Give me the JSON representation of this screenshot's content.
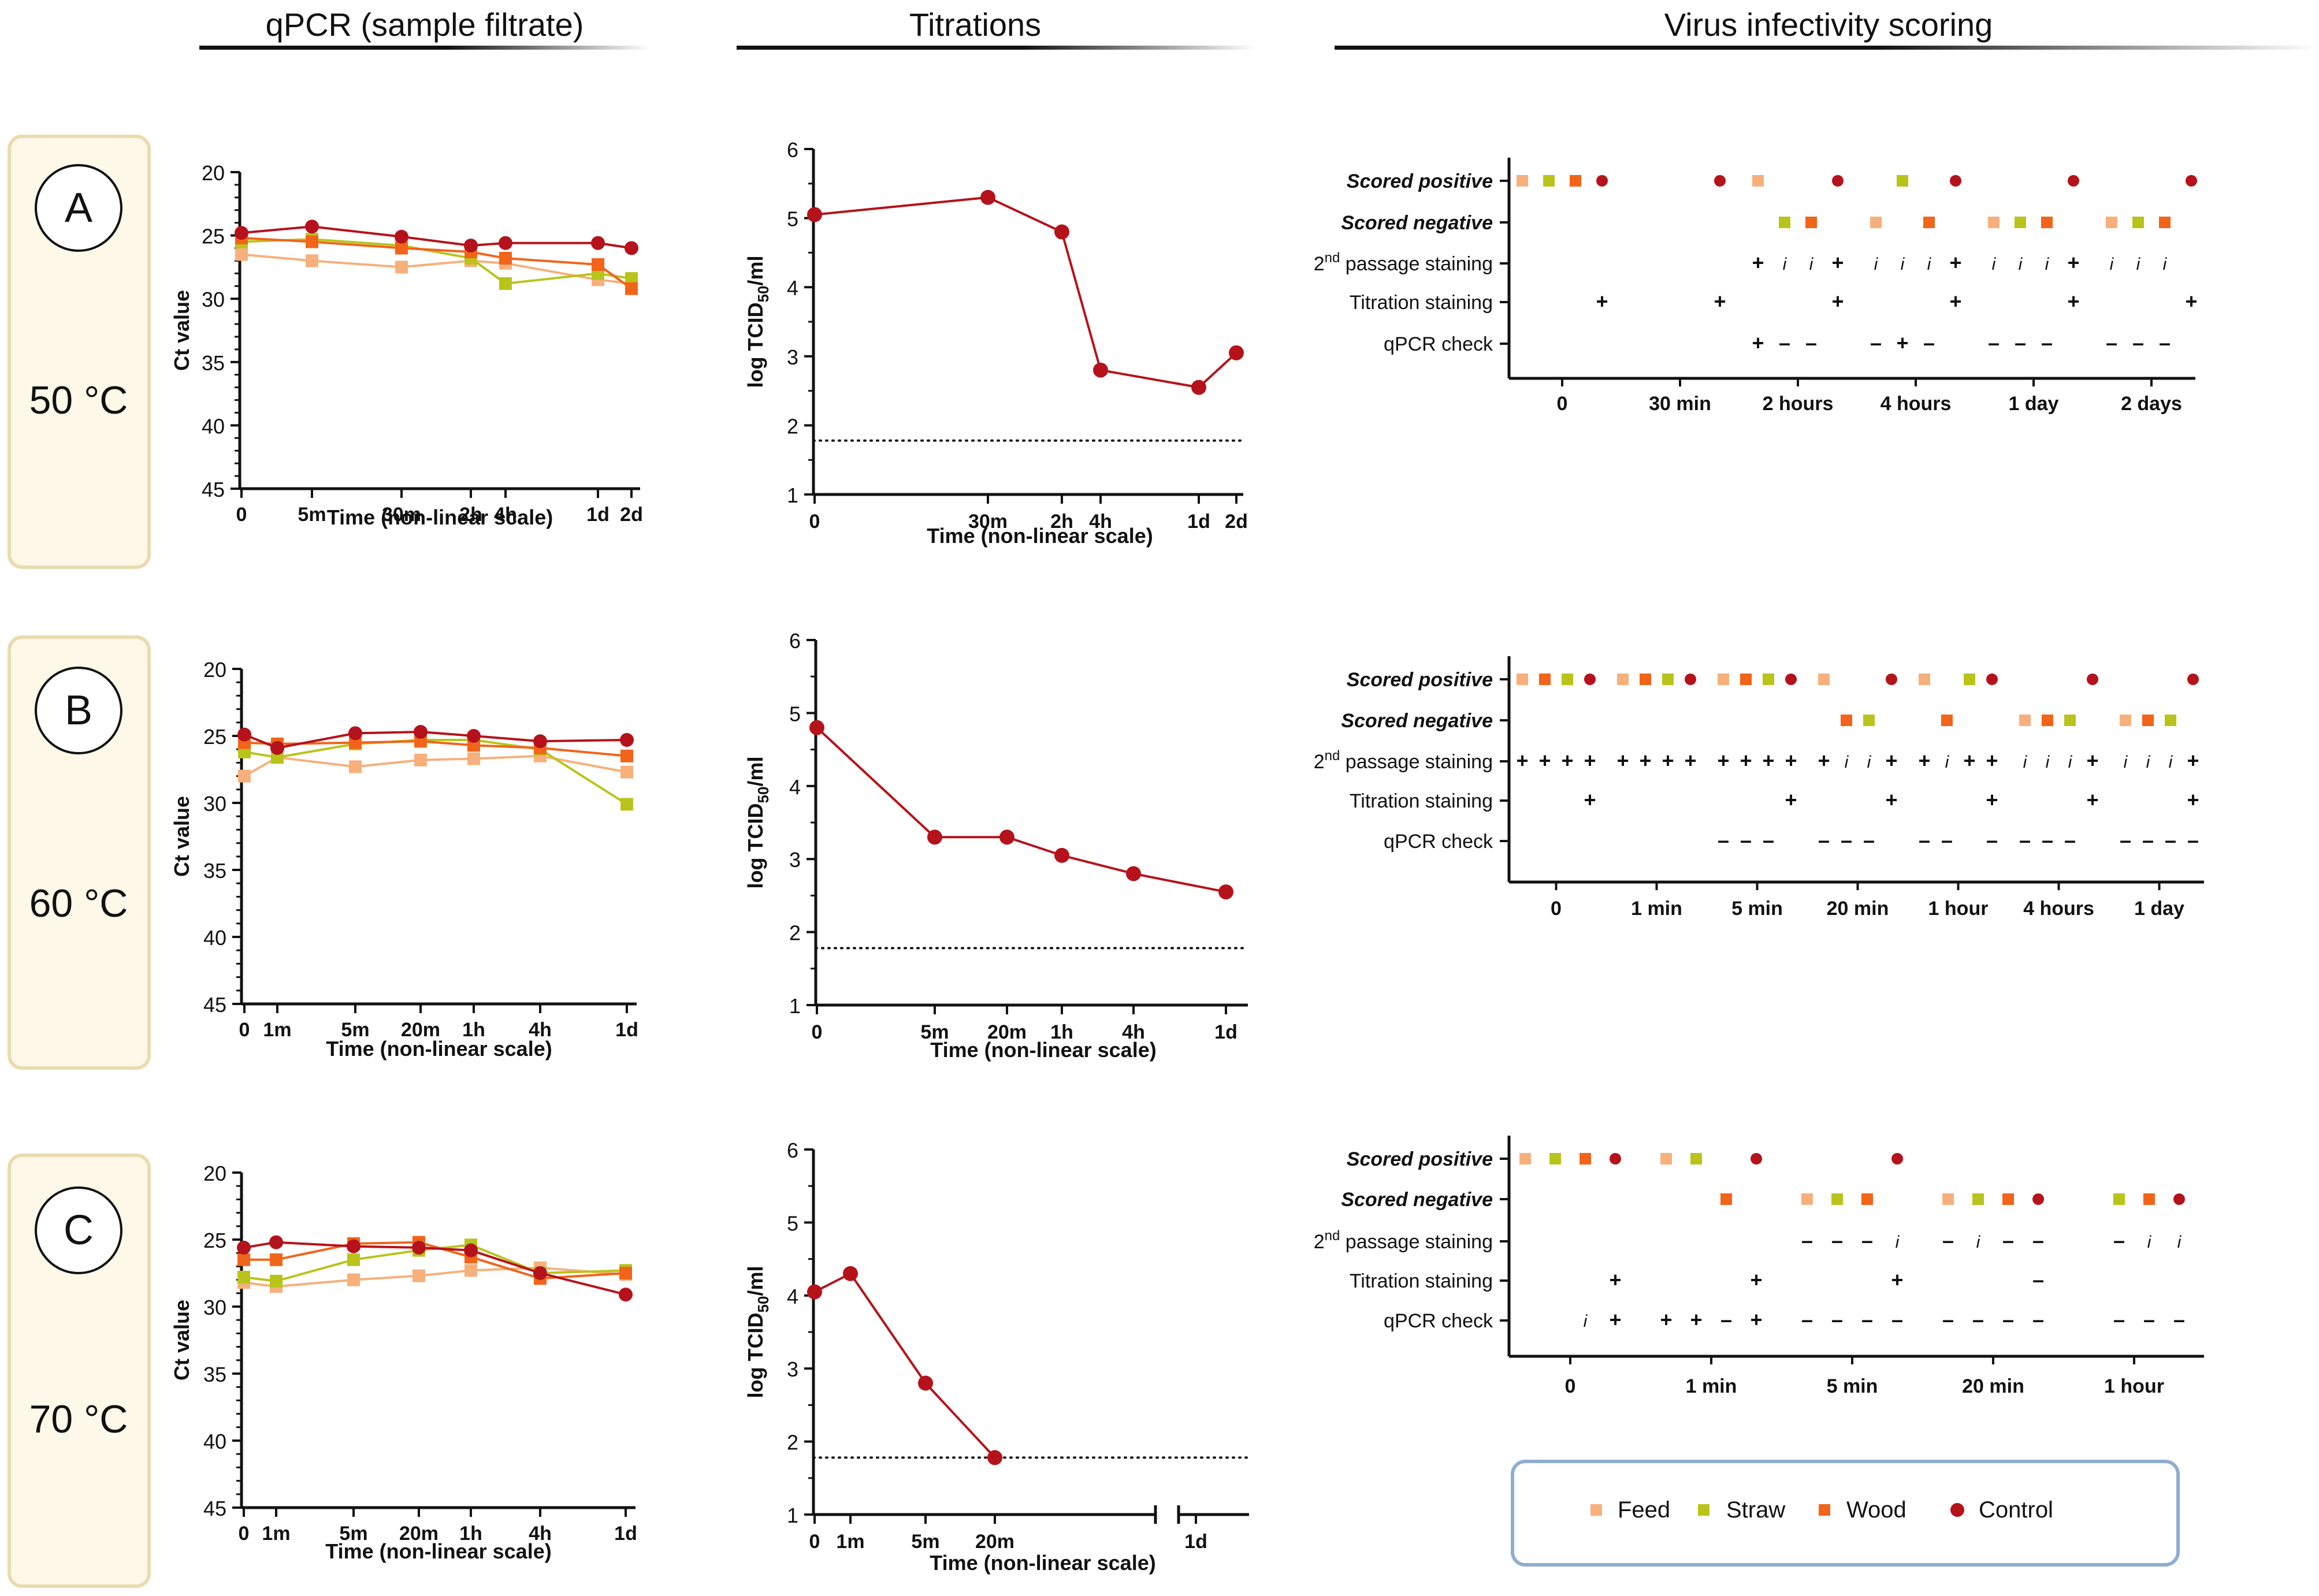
{
  "headers": {
    "qpcr": "qPCR (sample filtrate)",
    "titrations": "Titrations",
    "scoring": "Virus infectivity scoring"
  },
  "colors": {
    "Feed": "#f7b07c",
    "Straw": "#b8c41a",
    "Wood": "#f26419",
    "Control": "#b5121b",
    "panel_fill": "#fdf8e8",
    "panel_stroke": "#eadbb0",
    "legend_stroke": "#8fadd0"
  },
  "panels": [
    {
      "letter": "A",
      "temperature": "50 °C"
    },
    {
      "letter": "B",
      "temperature": "60 °C"
    },
    {
      "letter": "C",
      "temperature": "70 °C"
    }
  ],
  "legend": {
    "items": [
      {
        "label": "Feed",
        "shape": "square"
      },
      {
        "label": "Straw",
        "shape": "square"
      },
      {
        "label": "Wood",
        "shape": "square"
      },
      {
        "label": "Control",
        "shape": "circle"
      }
    ]
  },
  "chart_data": [
    {
      "id": "qpcrA",
      "type": "line",
      "title": "",
      "xlabel": "Time (non-linear scale)",
      "ylabel": "Ct value",
      "ylim": [
        45,
        20
      ],
      "yticks": [
        20,
        25,
        30,
        35,
        40,
        45
      ],
      "inverted_y": true,
      "categories": [
        "0",
        "5m",
        "30m",
        "2h",
        "4h",
        "1d",
        "2d"
      ],
      "series": [
        {
          "name": "Feed",
          "values": [
            26.5,
            27.0,
            27.5,
            27.0,
            27.2,
            28.5,
            28.8
          ]
        },
        {
          "name": "Straw",
          "values": [
            25.5,
            25.3,
            25.8,
            26.8,
            28.8,
            28.0,
            28.4
          ]
        },
        {
          "name": "Wood",
          "values": [
            25.2,
            25.5,
            26.0,
            26.3,
            26.8,
            27.3,
            29.2
          ]
        },
        {
          "name": "Control",
          "values": [
            24.8,
            24.3,
            25.1,
            25.8,
            25.6,
            25.6,
            26.0
          ]
        }
      ]
    },
    {
      "id": "qpcrB",
      "type": "line",
      "title": "",
      "xlabel": "Time (non-linear scale)",
      "ylabel": "Ct value",
      "ylim": [
        45,
        20
      ],
      "yticks": [
        20,
        25,
        30,
        35,
        40,
        45
      ],
      "inverted_y": true,
      "categories": [
        "0",
        "1m",
        "5m",
        "20m",
        "1h",
        "4h",
        "1d"
      ],
      "series": [
        {
          "name": "Feed",
          "values": [
            28.0,
            26.6,
            27.3,
            26.8,
            26.7,
            26.5,
            27.7
          ]
        },
        {
          "name": "Straw",
          "values": [
            26.2,
            26.6,
            25.6,
            25.3,
            25.3,
            26.0,
            30.1
          ]
        },
        {
          "name": "Wood",
          "values": [
            25.5,
            25.6,
            25.5,
            25.4,
            25.7,
            25.9,
            26.5
          ]
        },
        {
          "name": "Control",
          "values": [
            24.9,
            25.9,
            24.8,
            24.7,
            25.0,
            25.4,
            25.3
          ]
        }
      ]
    },
    {
      "id": "qpcrC",
      "type": "line",
      "title": "",
      "xlabel": "Time (non-linear scale)",
      "ylabel": "Ct value",
      "ylim": [
        45,
        20
      ],
      "yticks": [
        20,
        25,
        30,
        35,
        40,
        45
      ],
      "inverted_y": true,
      "categories": [
        "0",
        "1m",
        "5m",
        "20m",
        "1h",
        "4h",
        "1d"
      ],
      "series": [
        {
          "name": "Feed",
          "values": [
            28.2,
            28.5,
            28.0,
            27.7,
            27.3,
            27.1,
            27.6
          ]
        },
        {
          "name": "Straw",
          "values": [
            27.8,
            28.1,
            26.5,
            25.8,
            25.4,
            27.5,
            27.3
          ]
        },
        {
          "name": "Wood",
          "values": [
            26.5,
            26.5,
            25.3,
            25.2,
            26.3,
            27.9,
            27.5
          ]
        },
        {
          "name": "Control",
          "values": [
            25.6,
            25.2,
            25.5,
            25.6,
            25.8,
            27.5,
            29.1
          ]
        }
      ]
    },
    {
      "id": "titA",
      "type": "line",
      "title": "",
      "xlabel": "Time (non-linear scale)",
      "ylabel": "log TCID50/ml",
      "ylabel_main": "log TCID",
      "ylabel_sub": "50",
      "ylabel_tail": "/ml",
      "ylim": [
        1,
        6
      ],
      "yticks": [
        1,
        2,
        3,
        4,
        5,
        6
      ],
      "detection_limit": 1.78,
      "categories": [
        "0",
        "30m",
        "2h",
        "4h",
        "1d",
        "2d"
      ],
      "series": [
        {
          "name": "Control",
          "values": [
            5.05,
            5.3,
            4.8,
            2.8,
            2.55,
            3.05
          ]
        }
      ]
    },
    {
      "id": "titB",
      "type": "line",
      "title": "",
      "xlabel": "Time (non-linear scale)",
      "ylabel": "log TCID50/ml",
      "ylabel_main": "log TCID",
      "ylabel_sub": "50",
      "ylabel_tail": "/ml",
      "ylim": [
        1,
        6
      ],
      "yticks": [
        1,
        2,
        3,
        4,
        5,
        6
      ],
      "detection_limit": 1.78,
      "categories": [
        "0",
        "5m",
        "20m",
        "1h",
        "4h",
        "1d"
      ],
      "series": [
        {
          "name": "Control",
          "values": [
            4.8,
            3.3,
            3.3,
            3.05,
            2.8,
            2.55
          ]
        }
      ]
    },
    {
      "id": "titC",
      "type": "line",
      "title": "",
      "xlabel": "Time (non-linear scale)",
      "ylabel": "log TCID50/ml",
      "ylabel_main": "log TCID",
      "ylabel_sub": "50",
      "ylabel_tail": "/ml",
      "ylim": [
        1,
        6
      ],
      "yticks": [
        1,
        2,
        3,
        4,
        5,
        6
      ],
      "detection_limit": 1.78,
      "categories": [
        "0",
        "1m",
        "5m",
        "20m",
        "1d"
      ],
      "axis_break": true,
      "series": [
        {
          "name": "Control",
          "values": [
            4.05,
            4.3,
            2.8,
            1.78,
            null
          ]
        }
      ]
    },
    {
      "id": "scoreA",
      "type": "table",
      "rows": [
        "Scored positive",
        "Scored negative",
        "2nd passage staining",
        "Titration staining",
        "qPCR check"
      ],
      "row_bold": [
        true,
        true,
        false,
        false,
        false
      ],
      "categories": [
        "0",
        "30 min",
        "2 hours",
        "4 hours",
        "1 day",
        "2 days"
      ],
      "groups": [
        {
          "pos": [
            "Feed",
            "Straw",
            "Wood",
            "Control"
          ],
          "neg": [],
          "p2": [
            "",
            "",
            "",
            ""
          ],
          "tit": [
            "",
            "",
            "",
            "+"
          ],
          "qp": [
            "",
            "",
            "",
            ""
          ]
        },
        {
          "pos": [
            "",
            "",
            "",
            "Control"
          ],
          "neg": [],
          "p2": [
            "",
            "",
            "",
            ""
          ],
          "tit": [
            "",
            "",
            "",
            "+"
          ],
          "qp": [
            "",
            "",
            "",
            ""
          ]
        },
        {
          "pos": [
            "Feed",
            "",
            "",
            "Control"
          ],
          "neg": [
            "",
            "Straw",
            "Wood",
            ""
          ],
          "p2": [
            "+",
            "i",
            "i",
            "+"
          ],
          "tit": [
            "",
            "",
            "",
            "+"
          ],
          "qp": [
            "+",
            "–",
            "–",
            ""
          ]
        },
        {
          "pos": [
            "",
            "Straw",
            "",
            "Control"
          ],
          "neg": [
            "Feed",
            "",
            "Wood",
            ""
          ],
          "p2": [
            "i",
            "i",
            "i",
            "+"
          ],
          "tit": [
            "",
            "",
            "",
            "+"
          ],
          "qp": [
            "–",
            "+",
            "–",
            ""
          ]
        },
        {
          "pos": [
            "",
            "",
            "",
            "Control"
          ],
          "neg": [
            "Feed",
            "Straw",
            "Wood",
            ""
          ],
          "p2": [
            "i",
            "i",
            "i",
            "+"
          ],
          "tit": [
            "",
            "",
            "",
            "+"
          ],
          "qp": [
            "–",
            "–",
            "–",
            ""
          ]
        },
        {
          "pos": [
            "",
            "",
            "",
            "Control"
          ],
          "neg": [
            "Feed",
            "Straw",
            "Wood",
            ""
          ],
          "p2": [
            "i",
            "i",
            "i",
            ""
          ],
          "tit": [
            "",
            "",
            "",
            "+"
          ],
          "qp": [
            "–",
            "–",
            "–",
            ""
          ]
        }
      ]
    },
    {
      "id": "scoreB",
      "type": "table",
      "rows": [
        "Scored positive",
        "Scored negative",
        "2nd passage staining",
        "Titration staining",
        "qPCR check"
      ],
      "row_bold": [
        true,
        true,
        false,
        false,
        false
      ],
      "categories": [
        "0",
        "1 min",
        "5 min",
        "20 min",
        "1 hour",
        "4 hours",
        "1 day"
      ],
      "groups": [
        {
          "pos": [
            "Feed",
            "Wood",
            "Straw",
            "Control"
          ],
          "neg": [],
          "p2": [
            "+",
            "+",
            "+",
            "+"
          ],
          "tit": [
            "",
            "",
            "",
            "+"
          ],
          "qp": [
            "",
            "",
            "",
            ""
          ]
        },
        {
          "pos": [
            "Feed",
            "Wood",
            "Straw",
            "Control"
          ],
          "neg": [],
          "p2": [
            "+",
            "+",
            "+",
            "+"
          ],
          "tit": [
            "",
            "",
            "",
            ""
          ],
          "qp": [
            "",
            "",
            "",
            ""
          ]
        },
        {
          "pos": [
            "Feed",
            "Wood",
            "Straw",
            "Control"
          ],
          "neg": [],
          "p2": [
            "+",
            "+",
            "+",
            "+"
          ],
          "tit": [
            "",
            "",
            "",
            "+"
          ],
          "qp": [
            "–",
            "–",
            "–",
            ""
          ]
        },
        {
          "pos": [
            "Feed",
            "",
            "",
            "Control"
          ],
          "neg": [
            "",
            "Wood",
            "Straw",
            ""
          ],
          "p2": [
            "+",
            "i",
            "i",
            "+"
          ],
          "tit": [
            "",
            "",
            "",
            "+"
          ],
          "qp": [
            "–",
            "–",
            "–",
            ""
          ]
        },
        {
          "pos": [
            "Feed",
            "",
            "Straw",
            "Control"
          ],
          "neg": [
            "",
            "Wood",
            "",
            ""
          ],
          "p2": [
            "+",
            "i",
            "+",
            "+"
          ],
          "tit": [
            "",
            "",
            "",
            "+"
          ],
          "qp": [
            "–",
            "–",
            "",
            "–"
          ]
        },
        {
          "pos": [
            "",
            "",
            "",
            "Control"
          ],
          "neg": [
            "Feed",
            "Wood",
            "Straw",
            ""
          ],
          "p2": [
            "i",
            "i",
            "i",
            "+"
          ],
          "tit": [
            "",
            "",
            "",
            "+"
          ],
          "qp": [
            "–",
            "–",
            "–",
            ""
          ]
        },
        {
          "pos": [
            "",
            "",
            "",
            "Control"
          ],
          "neg": [
            "Feed",
            "Wood",
            "Straw",
            ""
          ],
          "p2": [
            "i",
            "i",
            "i",
            "+"
          ],
          "tit": [
            "",
            "",
            "",
            "+"
          ],
          "qp": [
            "–",
            "–",
            "–",
            "–"
          ]
        }
      ]
    },
    {
      "id": "scoreC",
      "type": "table",
      "rows": [
        "Scored positive",
        "Scored negative",
        "2nd passage staining",
        "Titration staining",
        "qPCR check"
      ],
      "row_bold": [
        true,
        true,
        false,
        false,
        false
      ],
      "categories": [
        "0",
        "1 min",
        "5 min",
        "20 min",
        "1 hour"
      ],
      "groups": [
        {
          "pos": [
            "Feed",
            "Straw",
            "Wood",
            "Control"
          ],
          "neg": [],
          "p2": [
            "",
            "",
            "",
            ""
          ],
          "tit": [
            "",
            "",
            "",
            "+"
          ],
          "qp": [
            "",
            "",
            "i",
            "+"
          ]
        },
        {
          "pos": [
            "Feed",
            "Straw",
            "",
            "Control"
          ],
          "neg": [
            "",
            "",
            "Wood",
            ""
          ],
          "p2": [
            "",
            "",
            "",
            ""
          ],
          "tit": [
            "",
            "",
            "",
            "+"
          ],
          "qp": [
            "+",
            "+",
            "–",
            "+"
          ]
        },
        {
          "pos": [
            "",
            "",
            "",
            "Control"
          ],
          "neg": [
            "Feed",
            "Straw",
            "Wood",
            ""
          ],
          "p2": [
            "–",
            "–",
            "–",
            "i"
          ],
          "tit": [
            "",
            "",
            "",
            "+"
          ],
          "qp": [
            "–",
            "–",
            "–",
            "–"
          ]
        },
        {
          "pos": [],
          "neg": [
            "Feed",
            "Straw",
            "Wood",
            "Control"
          ],
          "p2": [
            "–",
            "i",
            "–",
            "–"
          ],
          "tit": [
            "",
            "",
            "",
            "–"
          ],
          "qp": [
            "–",
            "–",
            "–",
            "–"
          ]
        },
        {
          "pos": [],
          "neg": [
            "",
            "Straw",
            "Wood",
            "Control"
          ],
          "p2": [
            "",
            "–",
            "i",
            "i"
          ],
          "tit": [
            "",
            "",
            "",
            ""
          ],
          "qp": [
            "",
            "–",
            "–",
            "–"
          ]
        }
      ]
    }
  ]
}
